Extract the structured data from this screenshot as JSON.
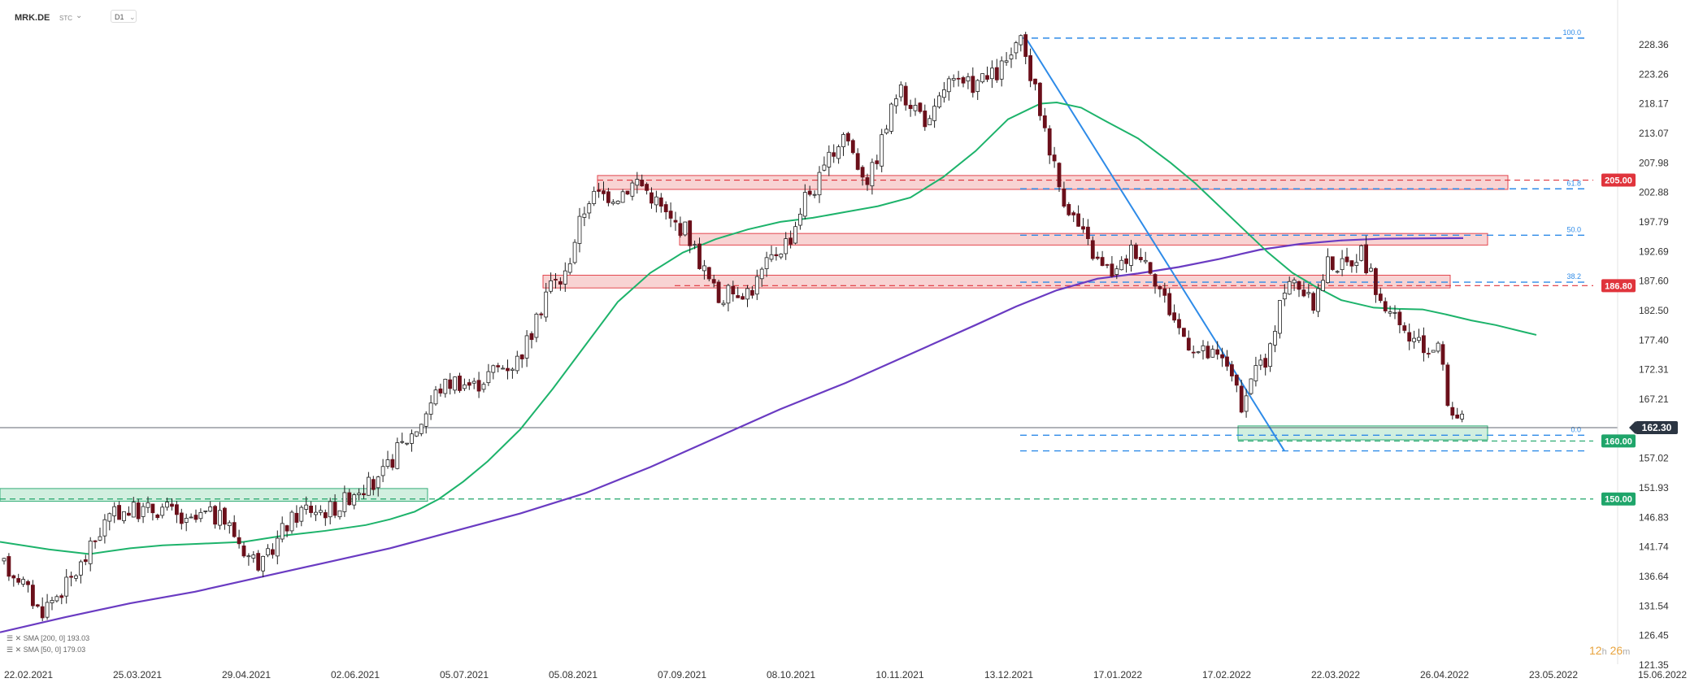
{
  "header": {
    "symbol": "MRK.DE",
    "sub": "STC",
    "timeframe": "D1"
  },
  "legend": [
    "SMA [200, 0] 193.03",
    "SMA [50, 0] 179.03"
  ],
  "timer": {
    "hours": "12",
    "h": "h",
    "minutes": "26",
    "m": "m"
  },
  "chart_data": {
    "type": "candlestick",
    "symbol": "MRK.DE",
    "timeframe": "D1",
    "y_ticks": [
      228.36,
      223.26,
      218.17,
      213.07,
      207.98,
      202.88,
      197.79,
      192.69,
      187.6,
      182.5,
      177.4,
      172.31,
      167.21,
      162.12,
      157.02,
      151.93,
      146.83,
      141.74,
      136.64,
      131.54,
      126.45,
      121.35
    ],
    "x_ticks": [
      "22.02.2021",
      "25.03.2021",
      "29.04.2021",
      "02.06.2021",
      "05.07.2021",
      "05.08.2021",
      "07.09.2021",
      "08.10.2021",
      "10.11.2021",
      "13.12.2021",
      "17.01.2022",
      "17.02.2022",
      "22.03.2022",
      "26.04.2022",
      "23.05.2022",
      "15.06.2022"
    ],
    "ylim": [
      121.35,
      230.5
    ],
    "current_price": 162.3,
    "price_labels": [
      {
        "value": 205.0,
        "text": "205.00",
        "color": "#e0343c"
      },
      {
        "value": 186.8,
        "text": "186.80",
        "color": "#e0343c"
      },
      {
        "value": 160.0,
        "text": "160.00",
        "color": "#1fa56a"
      },
      {
        "value": 150.0,
        "text": "150.00",
        "color": "#1fa56a"
      },
      {
        "value": 162.3,
        "text": "162.30",
        "color": "#2b3542"
      }
    ],
    "fibonacci": [
      {
        "level": "100.0",
        "value": 229.5
      },
      {
        "level": "61.8",
        "value": 203.5
      },
      {
        "level": "50.0",
        "value": 195.5
      },
      {
        "level": "38.2",
        "value": 187.4
      },
      {
        "level": "0.0",
        "value": 161.0
      }
    ],
    "series": [
      {
        "name": "SMA [200, 0]",
        "color": "#6a3bc2"
      },
      {
        "name": "SMA [50, 0]",
        "color": "#1db36b"
      }
    ]
  }
}
